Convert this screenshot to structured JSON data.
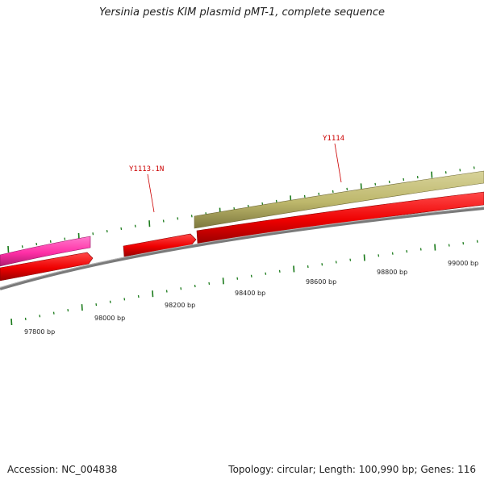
{
  "title": "Yersinia pestis KIM plasmid pMT-1, complete sequence",
  "footer": {
    "accession": "Accession: NC_004838",
    "summary": "Topology: circular; Length: 100,990 bp; Genes: 116"
  },
  "colors": {
    "backbone": "#808080",
    "cds_red": "#ee0000",
    "gene_magenta": "#ff33aa",
    "gene_khaki": "#bdb76b",
    "tick_green": "#1a7a1a",
    "label_red": "#cc0000"
  },
  "scale_labels": [
    "97800 bp",
    "98000 bp",
    "98200 bp",
    "98400 bp",
    "98600 bp",
    "98800 bp",
    "99000 bp"
  ],
  "gene_labels": [
    "Y1113.1N",
    "Y1114"
  ]
}
